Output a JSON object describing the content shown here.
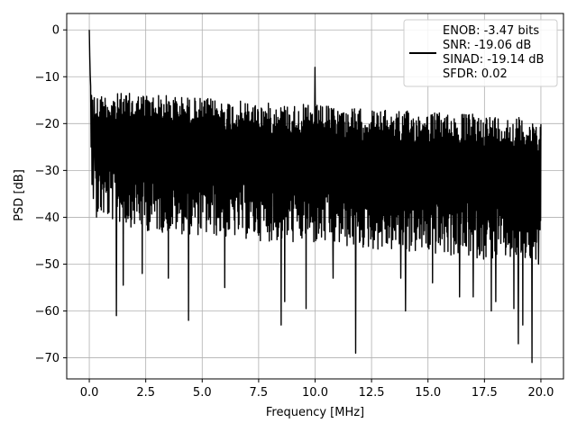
{
  "chart_data": {
    "type": "line",
    "xlabel": "Frequency [MHz]",
    "ylabel": "PSD [dB]",
    "xlim": [
      -1.0,
      21.0
    ],
    "ylim": [
      -74.5,
      3.5
    ],
    "xticks": [
      0.0,
      2.5,
      5.0,
      7.5,
      10.0,
      12.5,
      15.0,
      17.5,
      20.0
    ],
    "xtick_labels": [
      "0.0",
      "2.5",
      "5.0",
      "7.5",
      "10.0",
      "12.5",
      "15.0",
      "17.5",
      "20.0"
    ],
    "yticks": [
      0,
      -10,
      -20,
      -30,
      -40,
      -50,
      -60,
      -70
    ],
    "ytick_labels": [
      "0",
      "−10",
      "−20",
      "−30",
      "−40",
      "−50",
      "−60",
      "−70"
    ],
    "grid": true,
    "legend_position": "top-right",
    "series": [
      {
        "name": "ENOB: -3.47 bits\nSNR: -19.06 dB\nSINAD: -19.14 dB\nSFDR: 0.02",
        "color": "#000000",
        "x": [
          0.0,
          0.02,
          0.05,
          0.08,
          0.12,
          0.2,
          0.3,
          0.5,
          0.8,
          1.2,
          2.5,
          5.0,
          7.5,
          9.95,
          10.0,
          10.05,
          12.5,
          15.0,
          17.5,
          20.0
        ],
        "y": [
          0.0,
          -6.0,
          -10.0,
          -14.0,
          -25.0,
          -14.5,
          -15.0,
          -16.0,
          -20.0,
          -25.0,
          -26.0,
          -27.0,
          -28.0,
          -28.0,
          -8.0,
          -28.0,
          -28.5,
          -29.0,
          -29.0,
          -22.5
        ],
        "envelope_upper": [
          [
            0.3,
            -13.5
          ],
          [
            2.5,
            -13.5
          ],
          [
            5.0,
            -14.5
          ],
          [
            7.5,
            -15.5
          ],
          [
            10.0,
            -16.0
          ],
          [
            12.5,
            -17.0
          ],
          [
            15.0,
            -17.5
          ],
          [
            17.5,
            -18.0
          ],
          [
            20.0,
            -19.0
          ]
        ],
        "envelope_lower": [
          [
            0.3,
            -38.0
          ],
          [
            2.5,
            -41.0
          ],
          [
            5.0,
            -42.0
          ],
          [
            7.5,
            -43.0
          ],
          [
            10.0,
            -44.0
          ],
          [
            12.5,
            -45.0
          ],
          [
            15.0,
            -46.0
          ],
          [
            17.5,
            -47.0
          ],
          [
            20.0,
            -48.0
          ]
        ],
        "dips": [
          [
            1.2,
            -61.0
          ],
          [
            1.5,
            -54.5
          ],
          [
            2.35,
            -52.0
          ],
          [
            3.5,
            -53.0
          ],
          [
            4.4,
            -62.0
          ],
          [
            6.0,
            -55.0
          ],
          [
            8.5,
            -63.0
          ],
          [
            8.65,
            -58.0
          ],
          [
            9.6,
            -59.5
          ],
          [
            10.8,
            -53.0
          ],
          [
            11.8,
            -69.0
          ],
          [
            13.8,
            -53.0
          ],
          [
            14.0,
            -60.0
          ],
          [
            15.2,
            -54.0
          ],
          [
            16.4,
            -57.0
          ],
          [
            17.0,
            -57.0
          ],
          [
            17.8,
            -60.0
          ],
          [
            18.0,
            -58.0
          ],
          [
            18.8,
            -59.5
          ],
          [
            19.0,
            -67.0
          ],
          [
            19.2,
            -63.0
          ],
          [
            19.6,
            -71.0
          ],
          [
            19.9,
            -50.0
          ]
        ]
      }
    ]
  }
}
